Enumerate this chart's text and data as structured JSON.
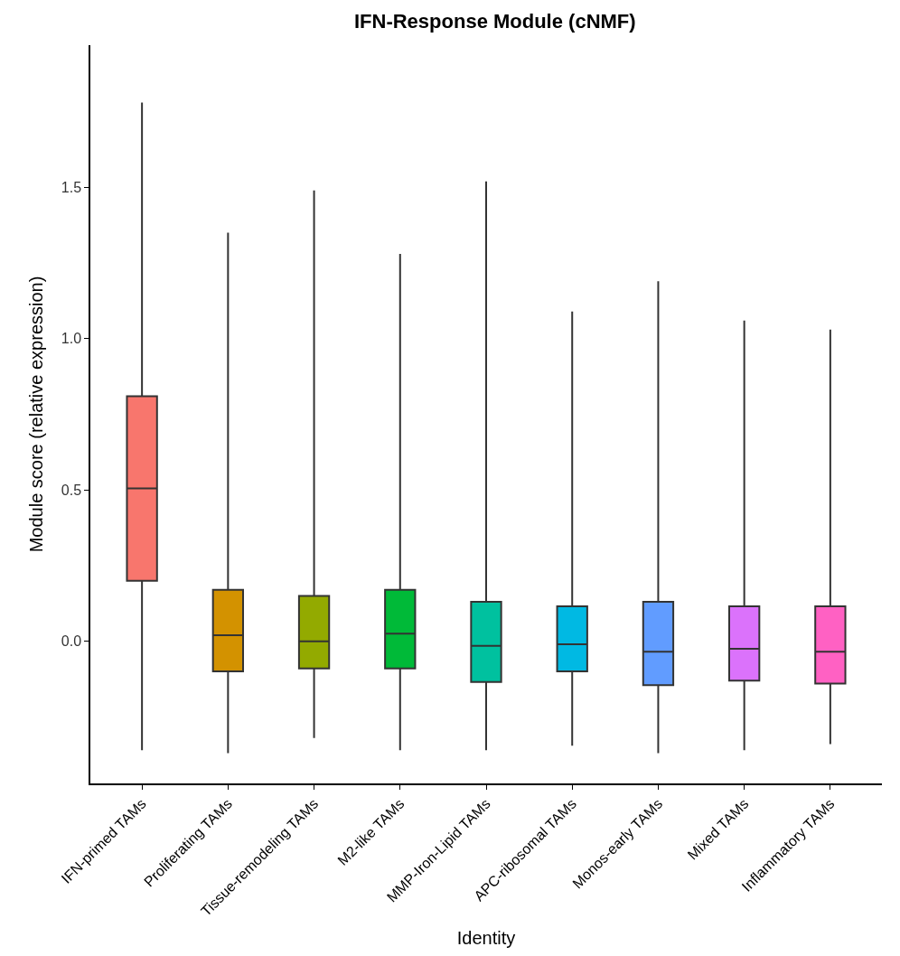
{
  "chart_data": {
    "type": "box",
    "title": "IFN-Response Module (cNMF)",
    "xlabel": "Identity",
    "ylabel": "Module score (relative expression)",
    "categories": [
      "IFN-primed TAMs",
      "Proliferating TAMs",
      "Tissue-remodeling TAMs",
      "M2-like TAMs",
      "MMP-Iron-Lipid TAMs",
      "APC-ribosomal TAMs",
      "Monos-early TAMs",
      "Mixed TAMs",
      "Inflammatory TAMs"
    ],
    "colors": [
      "#f8766d",
      "#d39200",
      "#93aa00",
      "#00ba38",
      "#00c19f",
      "#00b9e3",
      "#619cff",
      "#db72fb",
      "#ff61c3"
    ],
    "boxes": [
      {
        "low": -0.36,
        "q1": 0.2,
        "median": 0.505,
        "q3": 0.81,
        "high": 1.78
      },
      {
        "low": -0.37,
        "q1": -0.1,
        "median": 0.02,
        "q3": 0.17,
        "high": 1.35
      },
      {
        "low": -0.32,
        "q1": -0.09,
        "median": 0.0,
        "q3": 0.15,
        "high": 1.49
      },
      {
        "low": -0.36,
        "q1": -0.09,
        "median": 0.025,
        "q3": 0.17,
        "high": 1.28
      },
      {
        "low": -0.36,
        "q1": -0.135,
        "median": -0.015,
        "q3": 0.13,
        "high": 1.52
      },
      {
        "low": -0.345,
        "q1": -0.1,
        "median": -0.01,
        "q3": 0.115,
        "high": 1.09
      },
      {
        "low": -0.37,
        "q1": -0.145,
        "median": -0.035,
        "q3": 0.13,
        "high": 1.19
      },
      {
        "low": -0.36,
        "q1": -0.13,
        "median": -0.025,
        "q3": 0.115,
        "high": 1.06
      },
      {
        "low": -0.34,
        "q1": -0.14,
        "median": -0.035,
        "q3": 0.115,
        "high": 1.03
      }
    ],
    "ylim": [
      -0.47,
      1.97
    ],
    "yticks": [
      {
        "value": 0,
        "label": "0.0"
      },
      0.5,
      {
        "value": 1,
        "label": "1.0"
      },
      1.5
    ]
  }
}
